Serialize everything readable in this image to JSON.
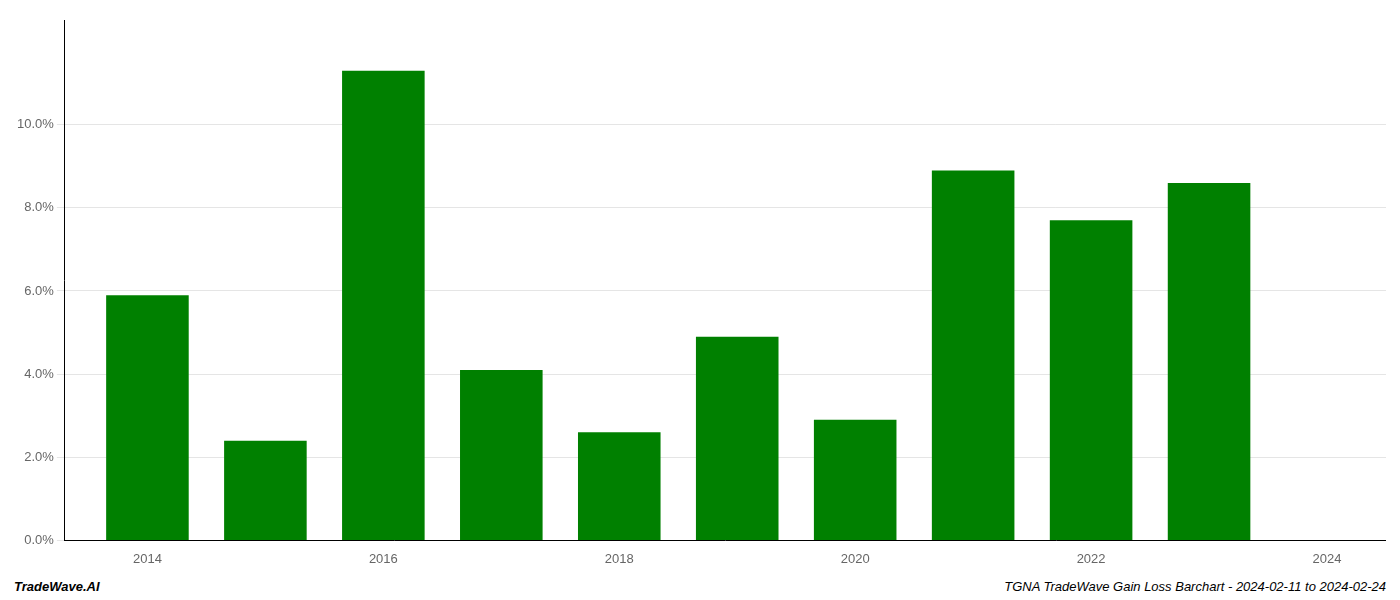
{
  "chart_data": {
    "type": "bar",
    "x": [
      2014,
      2015,
      2016,
      2017,
      2018,
      2019,
      2020,
      2021,
      2022,
      2023
    ],
    "values": [
      0.059,
      0.024,
      0.113,
      0.041,
      0.026,
      0.049,
      0.029,
      0.089,
      0.077,
      0.086
    ],
    "color": "#008000",
    "xlim": [
      2013.3,
      2024.5
    ],
    "xticks": [
      2014,
      2016,
      2018,
      2020,
      2022,
      2024
    ],
    "ylim": [
      0,
      0.125
    ],
    "yticks": [
      {
        "value": 0.0,
        "label": "0.0%"
      },
      {
        "value": 0.02,
        "label": "2.0%"
      },
      {
        "value": 0.04,
        "label": "4.0%"
      },
      {
        "value": 0.06,
        "label": "6.0%"
      },
      {
        "value": 0.08,
        "label": "8.0%"
      },
      {
        "value": 0.1,
        "label": "10.0%"
      }
    ],
    "grid": true,
    "annotations": [
      "TradeWave.AI",
      "TGNA TradeWave Gain Loss Barchart - 2024-02-11 to 2024-02-24"
    ]
  }
}
